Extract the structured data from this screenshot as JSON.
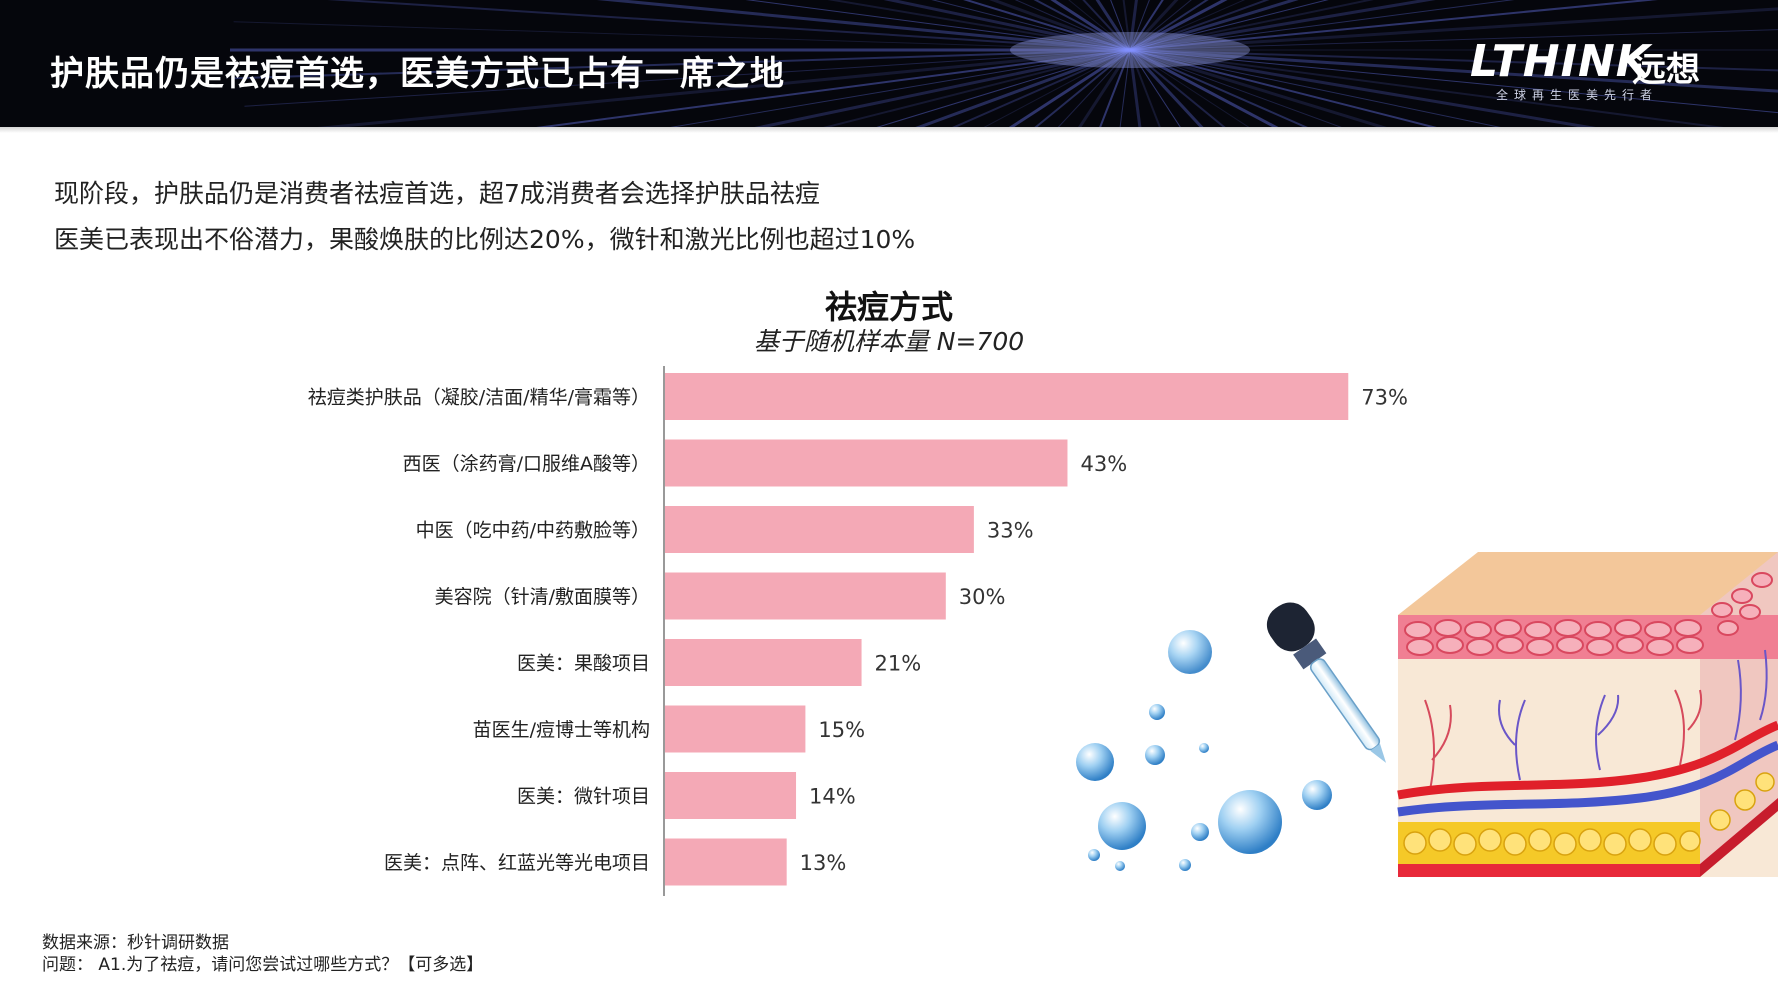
{
  "header": {
    "title": "护肤品仍是祛痘首选，医美方式已占有一席之地",
    "logo_text": "LTHINK",
    "logo_cn": "远想",
    "logo_tagline": "全球再生医美先行者"
  },
  "summary": {
    "line1": "现阶段，护肤品仍是消费者祛痘首选，超7成消费者会选择护肤品祛痘",
    "line2": "医美已表现出不俗潜力，果酸焕肤的比例达20%，微针和激光比例也超过10%"
  },
  "chart_data": {
    "type": "bar",
    "orientation": "horizontal",
    "title": "祛痘方式",
    "subtitle": "基于随机样本量 N=700",
    "categories": [
      "祛痘类护肤品（凝胶/洁面/精华/膏霜等）",
      "西医（涂药膏/口服维A酸等）",
      "中医（吃中药/中药敷脸等）",
      "美容院（针清/敷面膜等）",
      "医美：果酸项目",
      "苗医生/痘博士等机构",
      "医美：微针项目",
      "医美：点阵、红蓝光等光电项目"
    ],
    "values": [
      73,
      43,
      33,
      30,
      21,
      15,
      14,
      13
    ],
    "value_labels": [
      "73%",
      "43%",
      "33%",
      "30%",
      "21%",
      "15%",
      "14%",
      "13%"
    ],
    "unit": "%",
    "bar_color": "#f4a9b6",
    "axis_color": "#999999",
    "xlim": [
      0,
      100
    ]
  },
  "footnote": {
    "source": "数据来源：秒针调研数据",
    "question": "问题： A1.为了祛痘，请问您尝试过哪些方式？【可多选】"
  },
  "colors": {
    "header_bg": "#05060c",
    "header_text": "#ffffff",
    "ray_color": "#6f7fff",
    "skin_top": "#f3c79a",
    "skin_pink": "#f07f93",
    "fat_yellow": "#f5c928",
    "vein_blue": "#4455cc",
    "artery_red": "#e0202a"
  },
  "illustration": {
    "left_icon": "serum-dropper-bubbles-icon",
    "right_icon": "skin-cross-section-icon"
  }
}
